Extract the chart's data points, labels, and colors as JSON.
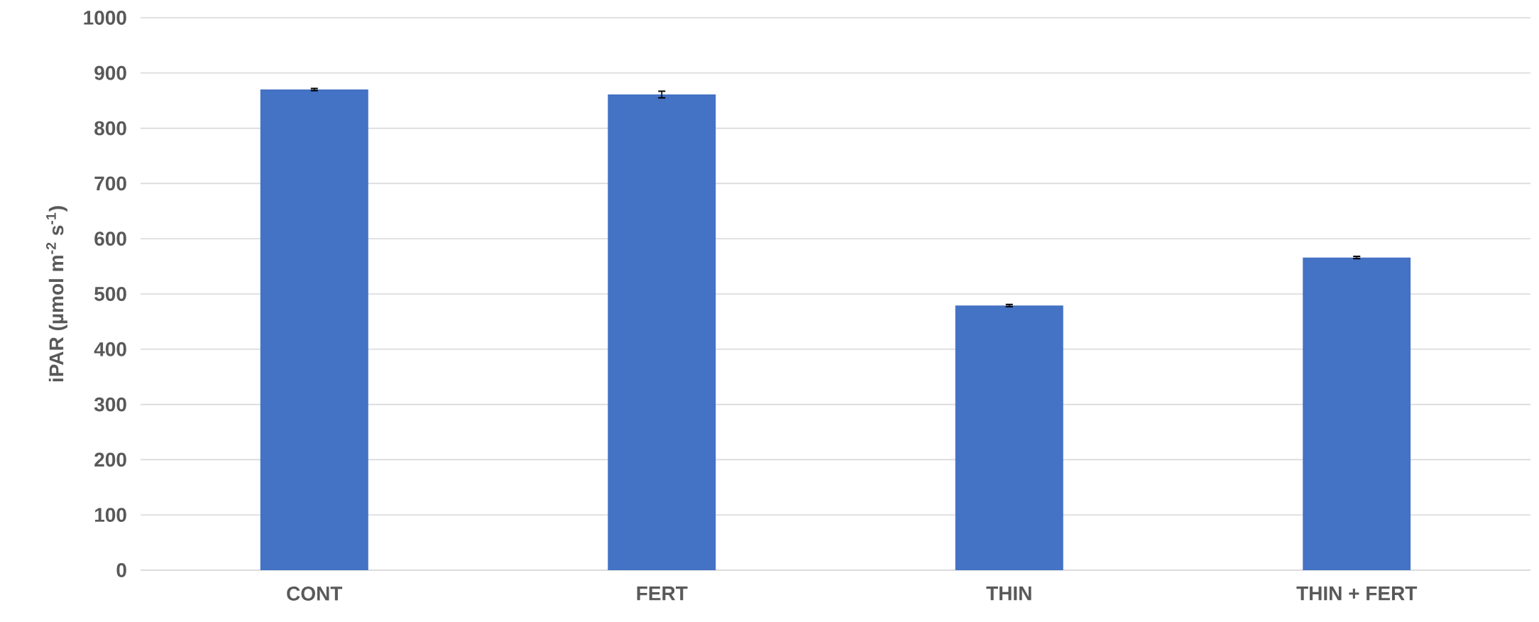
{
  "chart_data": {
    "type": "bar",
    "ylabel": "iPAR (µmol m$^{-2}$ s$^{-1}$)",
    "categories": [
      "CONT",
      "FERT",
      "THIN",
      "THIN + FERT"
    ],
    "values": [
      870,
      861,
      479,
      566
    ],
    "errors": [
      2,
      6,
      2,
      2
    ],
    "color": "#4472c4",
    "ylim": [
      0,
      1000
    ],
    "yticks": [
      0,
      100,
      200,
      300,
      400,
      500,
      600,
      700,
      800,
      900,
      1000
    ],
    "grid": "y"
  }
}
